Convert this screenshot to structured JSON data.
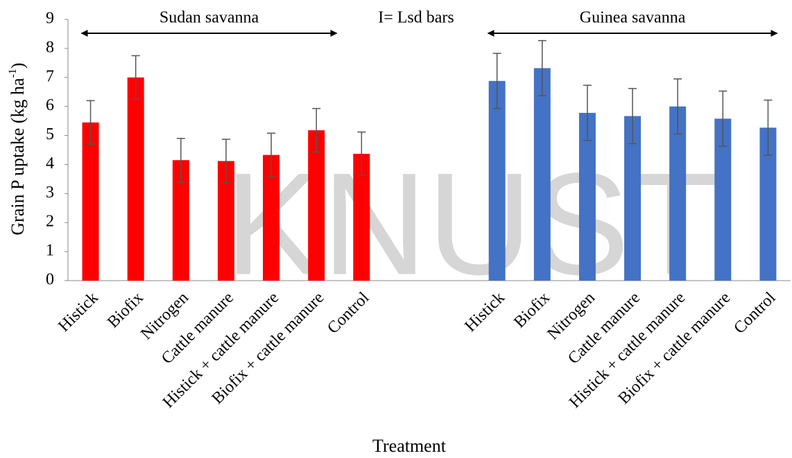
{
  "chart_data": {
    "type": "bar",
    "annotation": "I= Lsd bars",
    "watermark": "KNUST",
    "x_label": "Treatment",
    "y_label": [
      "Grain P uptake (kg ha",
      "-1",
      ")"
    ],
    "categories": [
      "Histick",
      "Biofix",
      "Nitrogen",
      "Cattle manure",
      "Histick + cattle manure",
      "Biofix + cattle manure",
      "Control",
      null,
      null,
      "Histick",
      "Biofix",
      "Nitrogen",
      "Cattle manure",
      "Histick + cattle manure",
      "Biofix + cattle manure",
      "Control"
    ],
    "series": [
      {
        "name": "Sudan savanna",
        "color": "#ff0000",
        "values": [
          5.45,
          7.0,
          4.15,
          4.12,
          4.33,
          5.18,
          4.37,
          null,
          null,
          null,
          null,
          null,
          null,
          null,
          null,
          null
        ],
        "errors": [
          0.75,
          0.75,
          0.75,
          0.75,
          0.75,
          0.75,
          0.75,
          null,
          null,
          null,
          null,
          null,
          null,
          null,
          null,
          null
        ]
      },
      {
        "name": "Guinea savanna",
        "color": "#4472c4",
        "values": [
          null,
          null,
          null,
          null,
          null,
          null,
          null,
          null,
          null,
          6.88,
          7.32,
          5.78,
          5.67,
          6.0,
          5.58,
          5.27
        ],
        "errors": [
          null,
          null,
          null,
          null,
          null,
          null,
          null,
          null,
          null,
          0.95,
          0.95,
          0.95,
          0.95,
          0.95,
          0.95,
          0.95
        ]
      }
    ],
    "ylim": [
      0,
      9
    ],
    "yticks": [
      0,
      1,
      2,
      3,
      4,
      5,
      6,
      7,
      8,
      9
    ],
    "grid": false
  }
}
